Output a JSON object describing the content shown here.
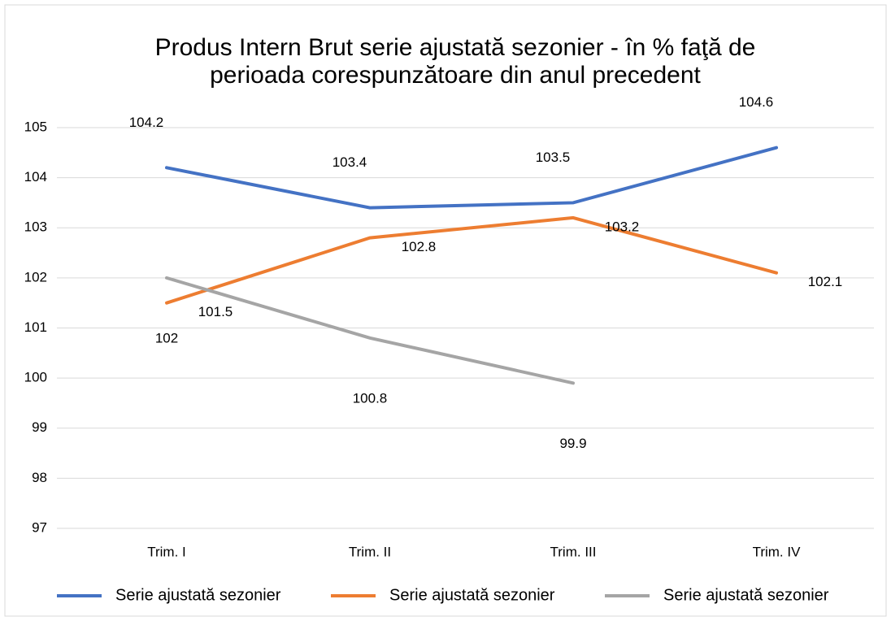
{
  "chart_data": {
    "type": "line",
    "title": "Produs Intern Brut serie ajustată sezonier - în % faţă de perioada corespunzătoare din anul precedent",
    "categories": [
      "Trim. I",
      "Trim. II",
      "Trim. III",
      "Trim. IV"
    ],
    "series": [
      {
        "name": "Serie ajustată sezonier",
        "color": "#4472c4",
        "values": [
          104.2,
          103.4,
          103.5,
          104.6
        ]
      },
      {
        "name": "Serie ajustată sezonier",
        "color": "#ed7d31",
        "values": [
          101.5,
          102.8,
          103.2,
          102.1
        ]
      },
      {
        "name": "Serie ajustată sezonier",
        "color": "#a5a5a5",
        "values": [
          102,
          100.8,
          99.9,
          null
        ]
      }
    ],
    "ylim": [
      97,
      105
    ],
    "yticks": [
      97,
      98,
      99,
      100,
      101,
      102,
      103,
      104,
      105
    ],
    "grid": true,
    "legend": "bottom"
  }
}
